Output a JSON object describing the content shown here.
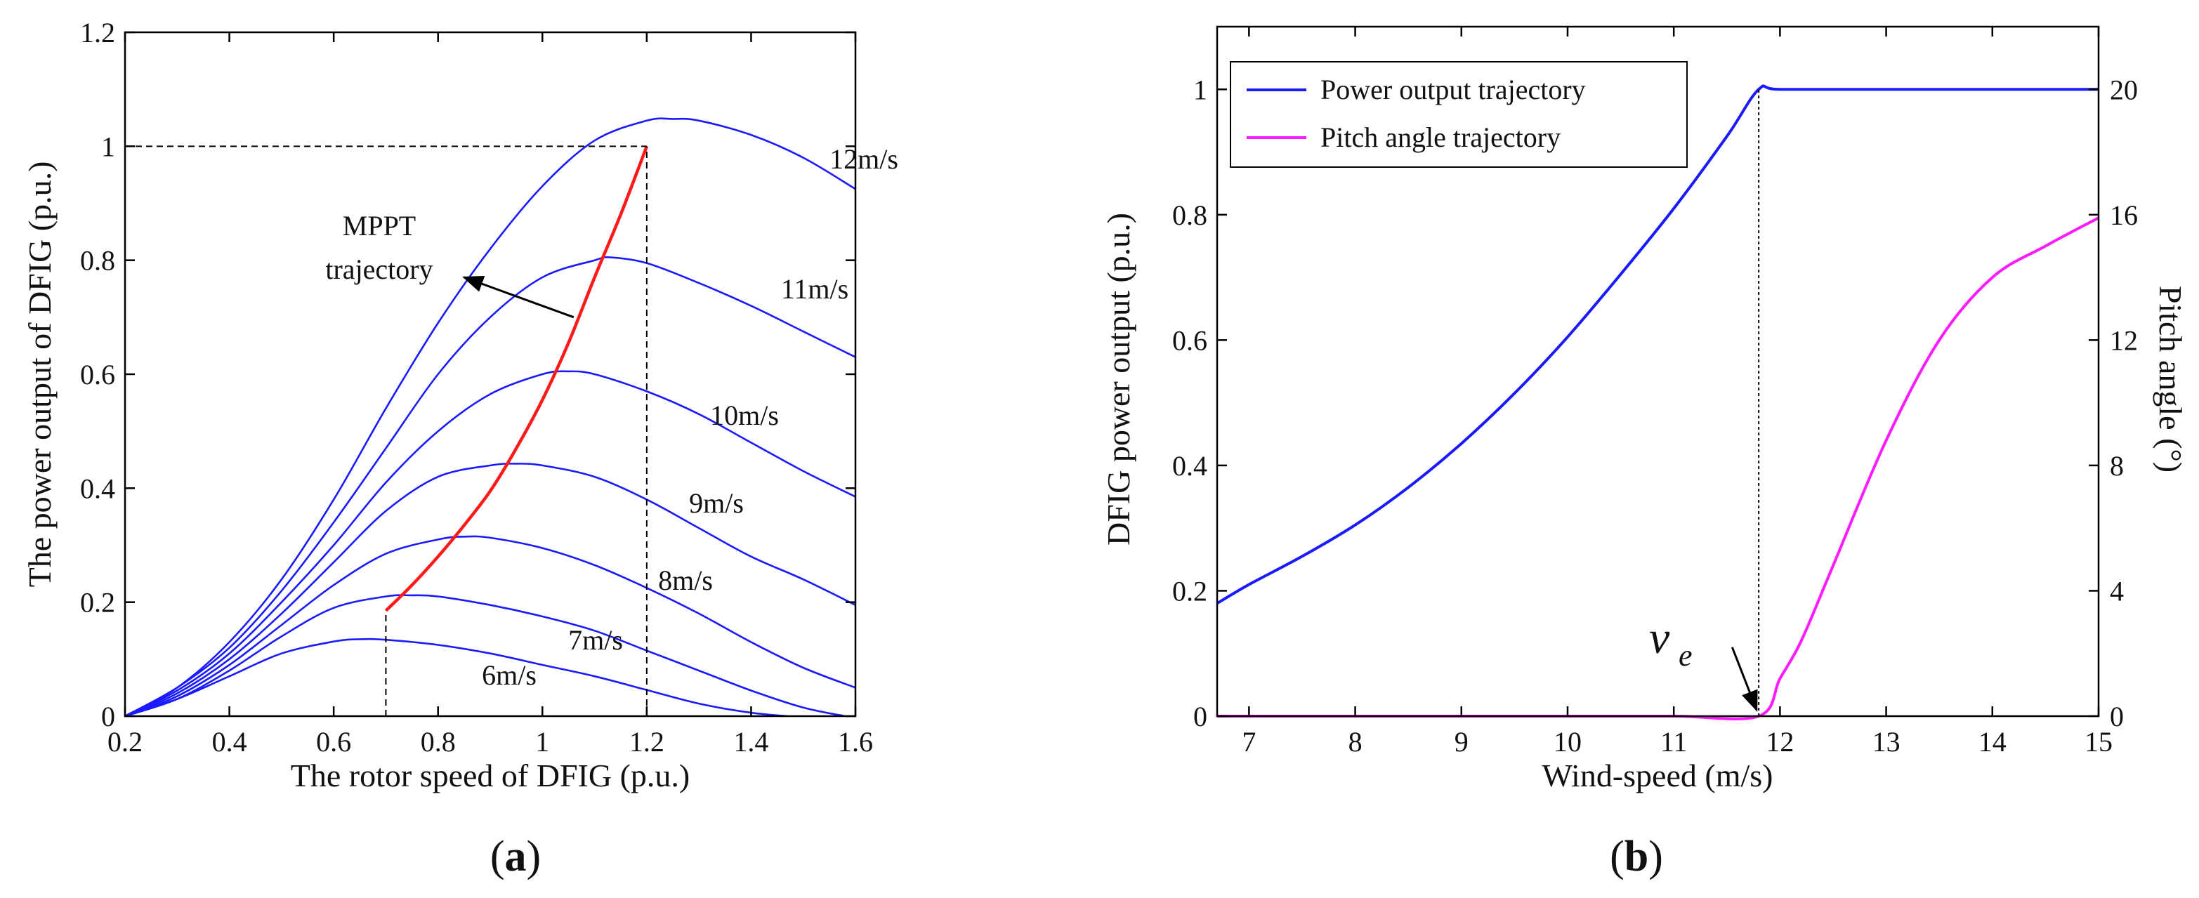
{
  "chart_data": [
    {
      "type": "line",
      "panel_label_parts": [
        "(",
        "a",
        ")"
      ],
      "xlabel": "The rotor speed of DFIG (p.u.)",
      "ylabel": "The power output of DFIG (p.u.)",
      "xlim": [
        0.2,
        1.6
      ],
      "ylim": [
        0,
        1.2
      ],
      "xticks": [
        "0.2",
        "0.4",
        "0.6",
        "0.8",
        "1",
        "1.2",
        "1.4",
        "1.6"
      ],
      "yticks": [
        "0",
        "0.2",
        "0.4",
        "0.6",
        "0.8",
        "1",
        "1.2"
      ],
      "grid": false,
      "colors": {
        "power_curves": "#1a1aff",
        "mppt": "#ff1a1a",
        "guides": "#000000"
      },
      "series": [
        {
          "name": "6m/s",
          "label": "6m/s",
          "peak_x": 0.65,
          "peak_y": 0.135,
          "x": [
            0.2,
            0.3,
            0.4,
            0.5,
            0.6,
            0.65,
            0.7,
            0.8,
            0.9,
            1.0,
            1.1,
            1.2,
            1.3,
            1.4,
            1.47
          ],
          "values": [
            0.0,
            0.03,
            0.07,
            0.11,
            0.131,
            0.135,
            0.134,
            0.125,
            0.11,
            0.09,
            0.07,
            0.046,
            0.022,
            0.006,
            0.0
          ]
        },
        {
          "name": "7m/s",
          "label": "7m/s",
          "peak_x": 0.75,
          "peak_y": 0.212,
          "x": [
            0.2,
            0.3,
            0.4,
            0.5,
            0.6,
            0.7,
            0.75,
            0.8,
            0.9,
            1.0,
            1.1,
            1.2,
            1.3,
            1.4,
            1.5,
            1.58
          ],
          "values": [
            0.0,
            0.03,
            0.08,
            0.14,
            0.19,
            0.21,
            0.212,
            0.21,
            0.195,
            0.175,
            0.15,
            0.115,
            0.08,
            0.045,
            0.015,
            0.0
          ]
        },
        {
          "name": "8m/s",
          "label": "8m/s",
          "peak_x": 0.85,
          "peak_y": 0.315,
          "x": [
            0.2,
            0.3,
            0.4,
            0.5,
            0.6,
            0.7,
            0.8,
            0.85,
            0.9,
            1.0,
            1.1,
            1.2,
            1.3,
            1.4,
            1.5,
            1.6
          ],
          "values": [
            0.0,
            0.035,
            0.09,
            0.16,
            0.23,
            0.285,
            0.31,
            0.315,
            0.313,
            0.295,
            0.265,
            0.225,
            0.18,
            0.13,
            0.085,
            0.05
          ]
        },
        {
          "name": "9m/s",
          "label": "9m/s",
          "peak_x": 0.95,
          "peak_y": 0.443,
          "x": [
            0.2,
            0.3,
            0.4,
            0.5,
            0.6,
            0.7,
            0.8,
            0.9,
            0.95,
            1.0,
            1.1,
            1.2,
            1.3,
            1.4,
            1.5,
            1.6
          ],
          "values": [
            0.0,
            0.04,
            0.1,
            0.18,
            0.27,
            0.36,
            0.42,
            0.44,
            0.443,
            0.44,
            0.42,
            0.38,
            0.33,
            0.28,
            0.24,
            0.195
          ]
        },
        {
          "name": "10m/s",
          "label": "10m/s",
          "peak_x": 1.05,
          "peak_y": 0.605,
          "x": [
            0.2,
            0.3,
            0.4,
            0.5,
            0.6,
            0.7,
            0.8,
            0.9,
            1.0,
            1.05,
            1.1,
            1.2,
            1.3,
            1.4,
            1.5,
            1.6
          ],
          "values": [
            0.0,
            0.045,
            0.11,
            0.2,
            0.3,
            0.41,
            0.5,
            0.565,
            0.6,
            0.605,
            0.6,
            0.57,
            0.53,
            0.48,
            0.43,
            0.385
          ]
        },
        {
          "name": "11m/s",
          "label": "11m/s",
          "peak_x": 1.13,
          "peak_y": 0.805,
          "x": [
            0.2,
            0.3,
            0.4,
            0.5,
            0.6,
            0.7,
            0.8,
            0.9,
            1.0,
            1.1,
            1.13,
            1.2,
            1.3,
            1.4,
            1.5,
            1.6
          ],
          "values": [
            0.0,
            0.05,
            0.12,
            0.22,
            0.34,
            0.47,
            0.6,
            0.7,
            0.77,
            0.8,
            0.805,
            0.795,
            0.76,
            0.72,
            0.675,
            0.63
          ]
        },
        {
          "name": "12m/s",
          "label": "12m/s",
          "peak_x": 1.25,
          "peak_y": 1.048,
          "x": [
            0.2,
            0.3,
            0.4,
            0.5,
            0.6,
            0.7,
            0.8,
            0.9,
            1.0,
            1.1,
            1.2,
            1.25,
            1.3,
            1.4,
            1.5,
            1.6
          ],
          "values": [
            0.0,
            0.05,
            0.13,
            0.24,
            0.38,
            0.54,
            0.69,
            0.82,
            0.93,
            1.01,
            1.045,
            1.048,
            1.045,
            1.02,
            0.98,
            0.925
          ]
        },
        {
          "name": "MPPT trajectory",
          "x": [
            0.7,
            0.75,
            0.8,
            0.85,
            0.9,
            0.95,
            1.0,
            1.05,
            1.1,
            1.15,
            1.2
          ],
          "values": [
            0.185,
            0.23,
            0.28,
            0.335,
            0.395,
            0.47,
            0.555,
            0.655,
            0.77,
            0.88,
            1.0
          ]
        }
      ],
      "guides": [
        {
          "type": "hline",
          "y": 1.0,
          "x_from": 0.2,
          "x_to": 1.2
        },
        {
          "type": "vline",
          "x": 1.2,
          "y_from": 0,
          "y_to": 1.0
        },
        {
          "type": "vline",
          "x": 0.7,
          "y_from": 0,
          "y_to": 0.185
        }
      ],
      "annotations": [
        {
          "text_lines": [
            "MPPT",
            "trajectory"
          ],
          "arrow_from": [
            1.06,
            0.7
          ],
          "arrow_to": [
            0.85,
            0.77
          ]
        }
      ]
    },
    {
      "type": "line",
      "panel_label_parts": [
        "(",
        "b",
        ")"
      ],
      "xlabel": "Wind-speed (m/s)",
      "ylabel": "DFIG power output (p.u.)",
      "y2label": "Pitch angle (°)",
      "xlim": [
        6.7,
        15
      ],
      "ylim": [
        0,
        1.1
      ],
      "y2lim": [
        0,
        22
      ],
      "xticks": [
        "7",
        "8",
        "9",
        "10",
        "11",
        "12",
        "13",
        "14",
        "15"
      ],
      "yticks": [
        "0",
        "0.2",
        "0.4",
        "0.6",
        "0.8",
        "1"
      ],
      "y2ticks": [
        "0",
        "4",
        "8",
        "12",
        "16",
        "20"
      ],
      "grid": false,
      "legend": {
        "position": "top-left",
        "entries": [
          "Power output trajectory",
          "Pitch angle trajectory"
        ]
      },
      "colors": {
        "power": "#1a1aff",
        "pitch": "#ff1aff"
      },
      "series": [
        {
          "name": "Power output trajectory",
          "axis": "left",
          "x": [
            6.7,
            7,
            7.5,
            8,
            8.5,
            9,
            9.5,
            10,
            10.5,
            11,
            11.5,
            11.8,
            12,
            13,
            14,
            15
          ],
          "values": [
            0.18,
            0.21,
            0.255,
            0.305,
            0.365,
            0.435,
            0.515,
            0.605,
            0.705,
            0.81,
            0.925,
            1.0,
            1.0,
            1.0,
            1.0,
            1.0
          ]
        },
        {
          "name": "Pitch angle trajectory",
          "axis": "right",
          "x": [
            6.7,
            8,
            9,
            10,
            11,
            11.8,
            12,
            12.2,
            12.5,
            13,
            13.5,
            14,
            14.5,
            15
          ],
          "values": [
            0,
            0,
            0,
            0,
            0,
            0,
            1.2,
            2.4,
            4.8,
            8.8,
            12.0,
            14.0,
            15.0,
            15.9
          ]
        }
      ],
      "guides": [
        {
          "type": "vline",
          "x": 11.8,
          "y_from": 0,
          "y_to": 1.0
        }
      ],
      "annotations": [
        {
          "text": "v",
          "subscript": "e",
          "arrow_from": [
            11.55,
            0.11
          ],
          "arrow_to": [
            11.78,
            0.01
          ]
        }
      ]
    }
  ]
}
